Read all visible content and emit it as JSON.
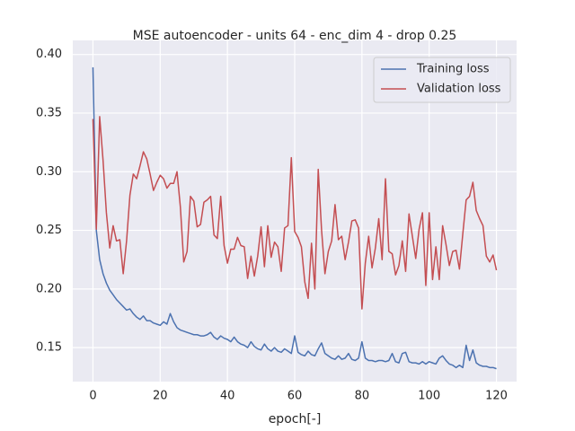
{
  "chart_data": {
    "type": "line",
    "title": "MSE autoencoder - units 64 - enc_dim 4 - drop 0.25",
    "x_label": "epoch[-]",
    "x": [
      0,
      1,
      2,
      3,
      4,
      5,
      6,
      7,
      8,
      9,
      10,
      11,
      12,
      13,
      14,
      15,
      16,
      17,
      18,
      19,
      20,
      21,
      22,
      23,
      24,
      25,
      26,
      27,
      28,
      29,
      30,
      31,
      32,
      33,
      34,
      35,
      36,
      37,
      38,
      39,
      40,
      41,
      42,
      43,
      44,
      45,
      46,
      47,
      48,
      49,
      50,
      51,
      52,
      53,
      54,
      55,
      56,
      57,
      58,
      59,
      60,
      61,
      62,
      63,
      64,
      65,
      66,
      67,
      68,
      69,
      70,
      71,
      72,
      73,
      74,
      75,
      76,
      77,
      78,
      79,
      80,
      81,
      82,
      83,
      84,
      85,
      86,
      87,
      88,
      89,
      90,
      91,
      92,
      93,
      94,
      95,
      96,
      97,
      98,
      99,
      100,
      101,
      102,
      103,
      104,
      105,
      106,
      107,
      108,
      109,
      110,
      111,
      112,
      113,
      114,
      115,
      116,
      117,
      118,
      119,
      120
    ],
    "series": [
      {
        "name": "Training loss",
        "color": "#4c72b0",
        "values": [
          0.389,
          0.25,
          0.225,
          0.213,
          0.205,
          0.199,
          0.195,
          0.191,
          0.188,
          0.185,
          0.182,
          0.183,
          0.179,
          0.176,
          0.174,
          0.177,
          0.173,
          0.173,
          0.171,
          0.17,
          0.169,
          0.172,
          0.17,
          0.179,
          0.172,
          0.167,
          0.165,
          0.164,
          0.163,
          0.162,
          0.161,
          0.161,
          0.16,
          0.16,
          0.161,
          0.163,
          0.159,
          0.157,
          0.16,
          0.158,
          0.157,
          0.155,
          0.159,
          0.155,
          0.153,
          0.152,
          0.15,
          0.155,
          0.151,
          0.149,
          0.148,
          0.153,
          0.149,
          0.147,
          0.15,
          0.147,
          0.146,
          0.149,
          0.147,
          0.145,
          0.16,
          0.146,
          0.144,
          0.143,
          0.147,
          0.144,
          0.143,
          0.149,
          0.154,
          0.145,
          0.143,
          0.141,
          0.14,
          0.143,
          0.14,
          0.141,
          0.145,
          0.14,
          0.139,
          0.141,
          0.155,
          0.141,
          0.139,
          0.139,
          0.138,
          0.139,
          0.139,
          0.138,
          0.139,
          0.145,
          0.138,
          0.137,
          0.145,
          0.146,
          0.138,
          0.137,
          0.137,
          0.136,
          0.138,
          0.136,
          0.138,
          0.137,
          0.136,
          0.141,
          0.143,
          0.139,
          0.136,
          0.135,
          0.133,
          0.135,
          0.133,
          0.152,
          0.139,
          0.148,
          0.137,
          0.135,
          0.134,
          0.134,
          0.133,
          0.133,
          0.132
        ]
      },
      {
        "name": "Validation loss",
        "color": "#c44e52",
        "values": [
          0.345,
          0.251,
          0.347,
          0.31,
          0.265,
          0.235,
          0.254,
          0.241,
          0.242,
          0.213,
          0.241,
          0.28,
          0.298,
          0.294,
          0.305,
          0.317,
          0.311,
          0.298,
          0.284,
          0.291,
          0.297,
          0.294,
          0.286,
          0.29,
          0.29,
          0.3,
          0.27,
          0.223,
          0.232,
          0.279,
          0.275,
          0.253,
          0.255,
          0.274,
          0.276,
          0.279,
          0.246,
          0.243,
          0.279,
          0.237,
          0.222,
          0.234,
          0.234,
          0.244,
          0.237,
          0.236,
          0.209,
          0.228,
          0.211,
          0.228,
          0.253,
          0.219,
          0.254,
          0.227,
          0.24,
          0.236,
          0.215,
          0.252,
          0.254,
          0.312,
          0.249,
          0.244,
          0.236,
          0.206,
          0.192,
          0.239,
          0.2,
          0.302,
          0.25,
          0.213,
          0.232,
          0.241,
          0.272,
          0.242,
          0.245,
          0.225,
          0.24,
          0.258,
          0.259,
          0.252,
          0.183,
          0.222,
          0.245,
          0.218,
          0.235,
          0.26,
          0.225,
          0.294,
          0.232,
          0.23,
          0.212,
          0.22,
          0.241,
          0.215,
          0.264,
          0.245,
          0.226,
          0.251,
          0.265,
          0.203,
          0.265,
          0.208,
          0.236,
          0.208,
          0.254,
          0.238,
          0.22,
          0.232,
          0.233,
          0.217,
          0.247,
          0.276,
          0.279,
          0.291,
          0.267,
          0.26,
          0.254,
          0.228,
          0.223,
          0.229,
          0.216
        ]
      }
    ],
    "xlim": [
      -6,
      126
    ],
    "xticks": [
      0,
      20,
      40,
      60,
      80,
      100,
      120
    ],
    "ylim": [
      0.121,
      0.412
    ],
    "yticks": [
      0.15,
      {
        "value": 0.2,
        "label": "0.20"
      },
      0.25,
      {
        "value": 0.3,
        "label": "0.30"
      },
      0.35,
      {
        "value": 0.4,
        "label": "0.40"
      }
    ],
    "grid": true,
    "legend": "upper right"
  }
}
